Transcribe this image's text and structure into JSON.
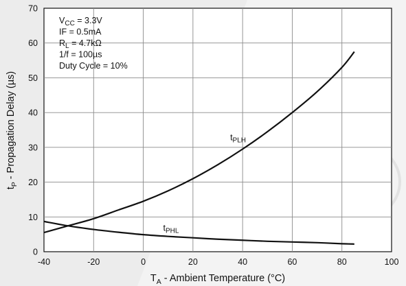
{
  "chart_data": {
    "type": "line",
    "xlabel": {
      "main": "T",
      "sub": "A",
      "rest": " - Ambient Temperature (°C)"
    },
    "ylabel": {
      "main": "t",
      "sub": "P",
      "rest": " - Propagation Delay (µs)"
    },
    "xlim": [
      -40,
      100
    ],
    "ylim": [
      0,
      70
    ],
    "xticks": [
      -40,
      -20,
      0,
      20,
      40,
      60,
      80,
      100
    ],
    "yticks": [
      0,
      10,
      20,
      30,
      40,
      50,
      60,
      70
    ],
    "xtick_labels": [
      "-40",
      "-20",
      "0",
      "20",
      "40",
      "60",
      "80",
      "100"
    ],
    "ytick_labels": [
      "0",
      "10",
      "20",
      "30",
      "40",
      "50",
      "60",
      "70"
    ],
    "grid": true,
    "conditions": [
      {
        "main": "V",
        "sub": "CC",
        "rest": " = 3.3V"
      },
      {
        "main": "IF = 0.5mA",
        "sub": "",
        "rest": ""
      },
      {
        "main": "R",
        "sub": "L",
        "rest": " = 4.7kΩ"
      },
      {
        "main": "1/f = 100µs",
        "sub": "",
        "rest": ""
      },
      {
        "main": "Duty Cycle = 10%",
        "sub": "",
        "rest": ""
      }
    ],
    "series": [
      {
        "name": "tPLH",
        "label_main": "t",
        "label_sub": "PLH",
        "label_at": [
          35,
          32
        ],
        "x": [
          -40,
          -30,
          -20,
          -10,
          0,
          10,
          20,
          30,
          40,
          50,
          60,
          70,
          80,
          85
        ],
        "y": [
          5.5,
          7.5,
          9.5,
          12,
          14.5,
          17.5,
          21,
          25,
          29.5,
          34.5,
          40,
          46,
          53,
          57.5
        ]
      },
      {
        "name": "tPHL",
        "label_main": "t",
        "label_sub": "PHL",
        "label_at": [
          8,
          6
        ],
        "x": [
          -40,
          -30,
          -20,
          -10,
          0,
          10,
          20,
          30,
          40,
          50,
          60,
          70,
          80,
          85
        ],
        "y": [
          8.7,
          7.4,
          6.4,
          5.6,
          4.9,
          4.4,
          4.0,
          3.6,
          3.3,
          3.0,
          2.8,
          2.6,
          2.3,
          2.2
        ]
      }
    ]
  }
}
